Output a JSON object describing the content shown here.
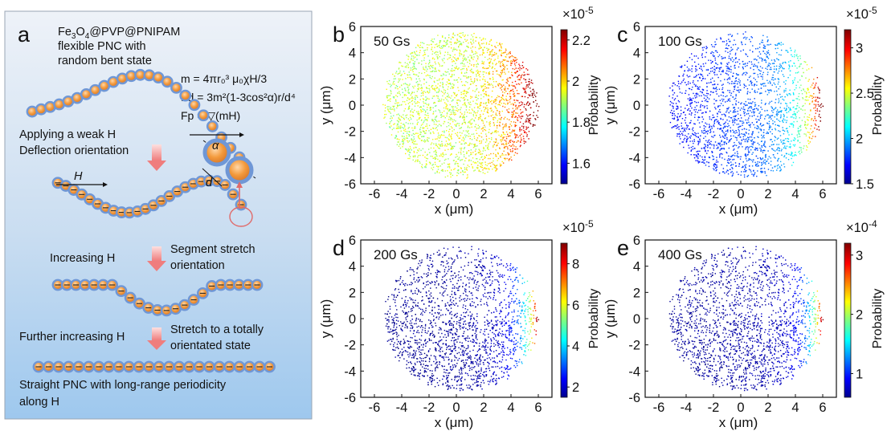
{
  "schematic": {
    "letter": "a",
    "title_prefix": "Fe",
    "title_sub1": "3",
    "title_mid": "O",
    "title_sub2": "4",
    "title_suffix": "@PVP@PNIPAM",
    "line2": "flexible PNC with",
    "line3": "random bent state",
    "step1_line1": "Applying a weak H",
    "step1_line2": "Deflection orientation",
    "field_label": "H",
    "alpha_label": "α",
    "d_label": "d",
    "step2_left": "Increasing H",
    "step2_right_1": "Segment stretch",
    "step2_right_2": "orientation",
    "step3_left": "Further increasing H",
    "step3_right_1": "Stretch to a totally",
    "step3_right_2": "orientated state",
    "final_line1": "Straight PNC with long-range periodicity",
    "final_line2": "along H",
    "formula_m": "m = 4πr₀³ μ₀χH/3",
    "formula_fd": "Fd = 3m²(1-3cos²α)r/d⁴",
    "formula_fp": "Fp = ▽(mH)"
  },
  "colors": {
    "panel_top": "#eef2f8",
    "panel_bottom": "#9ec8ee",
    "bead_core": "#f39a3c",
    "bead_shell": "#6f97d6",
    "arrow": "#f08a8a"
  },
  "chart_data": [
    {
      "type": "scatter",
      "panel": "b",
      "condition": "50 Gs",
      "xlabel": "x (μm)",
      "ylabel": "y (μm)",
      "xticks": [
        -6,
        -4,
        -2,
        0,
        2,
        4,
        6
      ],
      "yticks": [
        -6,
        -4,
        -2,
        0,
        2,
        4,
        6
      ],
      "xlim": [
        -7,
        7
      ],
      "ylim": [
        -6,
        6
      ],
      "region": "disk of radius ~5.8 μm",
      "colorbar_label": "Probability",
      "colorbar_exponent": "×10-5",
      "colorbar_ticks": [
        "1.6",
        "1.8",
        "2",
        "2.2"
      ],
      "colorbar_range": [
        1.5,
        2.25
      ],
      "colormap": "jet",
      "note": "probability increases toward +x edge"
    },
    {
      "type": "scatter",
      "panel": "c",
      "condition": "100 Gs",
      "xlabel": "x (μm)",
      "ylabel": "y (μm)",
      "xticks": [
        -6,
        -4,
        -2,
        0,
        2,
        4,
        6
      ],
      "yticks": [
        -6,
        -4,
        -2,
        0,
        2,
        4,
        6
      ],
      "xlim": [
        -7,
        7
      ],
      "ylim": [
        -6,
        6
      ],
      "colorbar_label": "Probability",
      "colorbar_exponent": "×10-5",
      "colorbar_ticks": [
        "1.5",
        "2",
        "2.5",
        "3"
      ],
      "colorbar_range": [
        1.5,
        3.2
      ],
      "colormap": "jet"
    },
    {
      "type": "scatter",
      "panel": "d",
      "condition": "200 Gs",
      "xlabel": "x (μm)",
      "ylabel": "y (μm)",
      "xticks": [
        -6,
        -4,
        -2,
        0,
        2,
        4,
        6
      ],
      "yticks": [
        -6,
        -4,
        -2,
        0,
        2,
        4,
        6
      ],
      "xlim": [
        -7,
        7
      ],
      "ylim": [
        -6,
        6
      ],
      "colorbar_label": "Probability",
      "colorbar_exponent": "×10-5",
      "colorbar_ticks": [
        "2",
        "4",
        "6",
        "8"
      ],
      "colorbar_range": [
        1.5,
        9
      ],
      "colormap": "jet"
    },
    {
      "type": "scatter",
      "panel": "e",
      "condition": "400 Gs",
      "xlabel": "x (μm)",
      "ylabel": "y (μm)",
      "xticks": [
        -6,
        -4,
        -2,
        0,
        2,
        4,
        6
      ],
      "yticks": [
        -6,
        -4,
        -2,
        0,
        2,
        4,
        6
      ],
      "xlim": [
        -7,
        7
      ],
      "ylim": [
        -6,
        6
      ],
      "colorbar_label": "Probability",
      "colorbar_exponent": "×10-4",
      "colorbar_ticks": [
        "1",
        "2",
        "3"
      ],
      "colorbar_range": [
        0.6,
        3.2
      ],
      "colormap": "jet"
    }
  ]
}
